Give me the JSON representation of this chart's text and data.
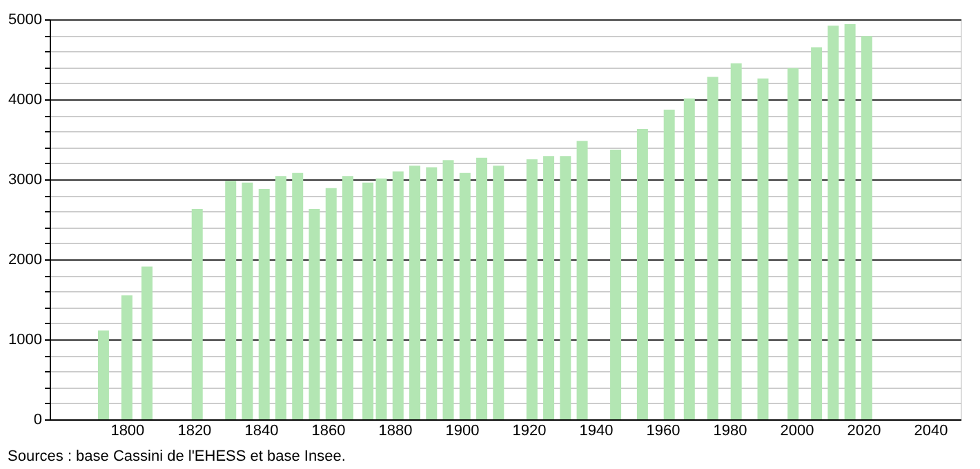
{
  "chart_data": {
    "type": "bar",
    "x": [
      1793,
      1800,
      1806,
      1821,
      1831,
      1836,
      1841,
      1846,
      1851,
      1856,
      1861,
      1866,
      1872,
      1876,
      1881,
      1886,
      1891,
      1896,
      1901,
      1906,
      1911,
      1921,
      1926,
      1931,
      1936,
      1946,
      1954,
      1962,
      1968,
      1975,
      1982,
      1990,
      1999,
      2006,
      2011,
      2016,
      2021
    ],
    "values": [
      1110,
      1550,
      1910,
      2630,
      2980,
      2960,
      2880,
      3040,
      3080,
      2630,
      2890,
      3040,
      2960,
      3010,
      3100,
      3170,
      3150,
      3240,
      3080,
      3270,
      3170,
      3250,
      3290,
      3290,
      3480,
      3370,
      3630,
      3870,
      4010,
      4280,
      4450,
      4260,
      4390,
      4650,
      4920,
      4940,
      4790
    ],
    "color": "#b3e6b3",
    "xlim": [
      1779,
      2047
    ],
    "xticks": [
      1800,
      1820,
      1840,
      1860,
      1880,
      1900,
      1920,
      1940,
      1960,
      1980,
      2000,
      2020,
      2040
    ],
    "ylim": [
      0,
      5000
    ],
    "yticks": [
      0,
      {
        "value": 200,
        "label": null
      },
      {
        "value": 400,
        "label": null
      },
      {
        "value": 600,
        "label": null
      },
      {
        "value": 800,
        "label": null
      },
      1000,
      {
        "value": 1200,
        "label": null
      },
      {
        "value": 1400,
        "label": null
      },
      {
        "value": 1600,
        "label": null
      },
      {
        "value": 1800,
        "label": null
      },
      2000,
      {
        "value": 2200,
        "label": null
      },
      {
        "value": 2400,
        "label": null
      },
      {
        "value": 2600,
        "label": null
      },
      {
        "value": 2800,
        "label": null
      },
      3000,
      {
        "value": 3200,
        "label": null
      },
      {
        "value": 3400,
        "label": null
      },
      {
        "value": 3600,
        "label": null
      },
      {
        "value": 3800,
        "label": null
      },
      4000,
      {
        "value": 4200,
        "label": null
      },
      {
        "value": 4400,
        "label": null
      },
      {
        "value": 4600,
        "label": null
      },
      {
        "value": 4800,
        "label": null
      },
      5000
    ],
    "grid": "y",
    "annotations": [
      "Sources : base Cassini de l'EHESS et base Insee."
    ]
  }
}
